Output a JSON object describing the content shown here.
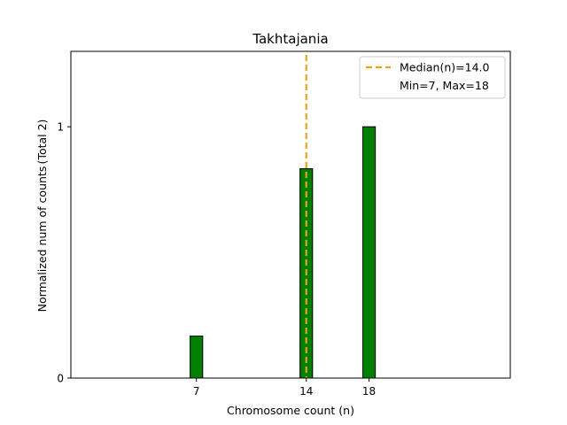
{
  "chart_data": {
    "type": "bar",
    "title": "Takhtajania",
    "xlabel": "Chromosome count (n)",
    "ylabel_main": "Normalized num of counts",
    "ylabel_total": "(Total 2)",
    "xlim": [
      -1,
      27
    ],
    "ylim": [
      0,
      1.3
    ],
    "x_ticks": [
      {
        "value": 7,
        "label": "7"
      },
      {
        "value": 14,
        "label": "14"
      },
      {
        "value": 18,
        "label": "18"
      }
    ],
    "y_ticks": [
      {
        "value": 0,
        "label": "0"
      },
      {
        "value": 1,
        "label": "1"
      }
    ],
    "bars": [
      {
        "x": 7,
        "value": 0.167
      },
      {
        "x": 14,
        "value": 0.833
      },
      {
        "x": 18,
        "value": 1.0
      }
    ],
    "bar_width": 0.8,
    "bar_color": "#008000",
    "median": {
      "value": 14.0,
      "color": "#e8a317"
    },
    "legend": {
      "position": "top-right",
      "median_label": "Median(n)=14.0",
      "range_label": "Min=7, Max=18"
    }
  }
}
